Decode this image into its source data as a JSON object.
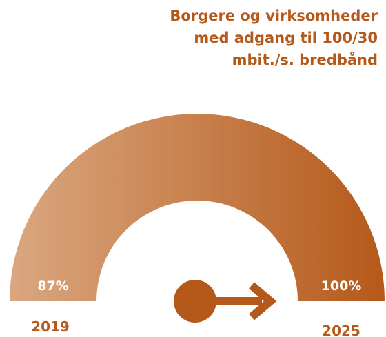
{
  "chart_data": {
    "type": "gauge",
    "title": [
      "Borgere og virksomheder",
      "med adgang til 100/30",
      "mbit./s. bredbånd"
    ],
    "categories": [
      "2019",
      "2025"
    ],
    "values": [
      87,
      100
    ],
    "value_labels": [
      "87%",
      "100%"
    ],
    "colors": [
      "#daa780",
      "#b5591a"
    ]
  }
}
